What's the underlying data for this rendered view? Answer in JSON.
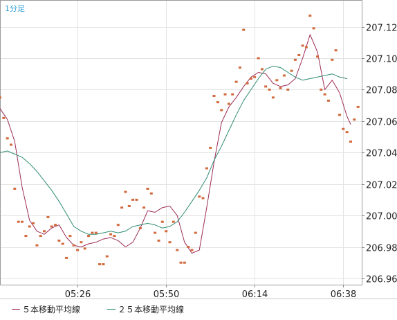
{
  "chart_data": {
    "type": "line",
    "timeframe_label": "1分足",
    "x_tick_labels": [
      "05:26",
      "05:50",
      "06:14",
      "06:38"
    ],
    "y_tick_labels": [
      "206.96",
      "206.98",
      "207.00",
      "207.02",
      "207.04",
      "207.06",
      "207.08",
      "207.10",
      "207.12"
    ],
    "y_ticks": [
      206.96,
      206.98,
      207.0,
      207.02,
      207.04,
      207.06,
      207.08,
      207.1,
      207.12
    ],
    "ylim": [
      206.956,
      207.137
    ],
    "x_start": "05:05",
    "x_end": "06:38",
    "grid": true,
    "legend_position": "bottom",
    "series": [
      {
        "name": "５本移動平均線",
        "color": "#9c2a55",
        "points": [
          [
            0,
            207.068
          ],
          [
            2,
            207.061
          ],
          [
            4,
            207.047
          ],
          [
            6,
            207.018
          ],
          [
            8,
            206.997
          ],
          [
            10,
            206.99
          ],
          [
            12,
            206.988
          ],
          [
            14,
            206.992
          ],
          [
            16,
            206.994
          ],
          [
            18,
            206.986
          ],
          [
            20,
            206.981
          ],
          [
            22,
            206.98
          ],
          [
            24,
            206.982
          ],
          [
            26,
            206.983
          ],
          [
            28,
            206.985
          ],
          [
            30,
            206.986
          ],
          [
            32,
            206.984
          ],
          [
            34,
            206.98
          ],
          [
            36,
            206.983
          ],
          [
            38,
            206.992
          ],
          [
            40,
            207.003
          ],
          [
            42,
            207.002
          ],
          [
            44,
            207.005
          ],
          [
            46,
            207.006
          ],
          [
            48,
            207.0
          ],
          [
            50,
            206.983
          ],
          [
            52,
            206.976
          ],
          [
            54,
            206.978
          ],
          [
            56,
            207.005
          ],
          [
            58,
            207.034
          ],
          [
            60,
            207.059
          ],
          [
            62,
            207.069
          ],
          [
            64,
            207.075
          ],
          [
            66,
            207.082
          ],
          [
            68,
            207.088
          ],
          [
            70,
            207.091
          ],
          [
            72,
            207.09
          ],
          [
            74,
            207.084
          ],
          [
            76,
            207.082
          ],
          [
            78,
            207.083
          ],
          [
            80,
            207.087
          ],
          [
            82,
            207.1
          ],
          [
            84,
            207.115
          ],
          [
            86,
            207.104
          ],
          [
            88,
            207.08
          ],
          [
            90,
            207.086
          ],
          [
            92,
            207.078
          ],
          [
            94,
            207.063
          ],
          [
            95,
            207.058
          ]
        ]
      },
      {
        "name": "２５本移動平均線",
        "color": "#2e8b73",
        "points": [
          [
            0,
            207.04
          ],
          [
            2,
            207.041
          ],
          [
            4,
            207.039
          ],
          [
            6,
            207.037
          ],
          [
            8,
            207.033
          ],
          [
            10,
            207.028
          ],
          [
            12,
            207.022
          ],
          [
            14,
            207.016
          ],
          [
            16,
            207.009
          ],
          [
            18,
            207.001
          ],
          [
            20,
            206.993
          ],
          [
            22,
            206.99
          ],
          [
            24,
            206.988
          ],
          [
            26,
            206.988
          ],
          [
            28,
            206.989
          ],
          [
            30,
            206.99
          ],
          [
            32,
            206.989
          ],
          [
            34,
            206.99
          ],
          [
            36,
            206.993
          ],
          [
            38,
            206.994
          ],
          [
            40,
            206.995
          ],
          [
            42,
            206.994
          ],
          [
            44,
            206.992
          ],
          [
            46,
            206.993
          ],
          [
            48,
            206.996
          ],
          [
            50,
            207.002
          ],
          [
            52,
            207.009
          ],
          [
            54,
            207.016
          ],
          [
            56,
            207.024
          ],
          [
            58,
            207.035
          ],
          [
            60,
            207.044
          ],
          [
            62,
            207.054
          ],
          [
            64,
            207.064
          ],
          [
            66,
            207.073
          ],
          [
            68,
            207.08
          ],
          [
            70,
            207.087
          ],
          [
            72,
            207.093
          ],
          [
            74,
            207.095
          ],
          [
            76,
            207.094
          ],
          [
            78,
            207.091
          ],
          [
            80,
            207.088
          ],
          [
            82,
            207.086
          ],
          [
            84,
            207.087
          ],
          [
            86,
            207.088
          ],
          [
            88,
            207.089
          ],
          [
            90,
            207.09
          ],
          [
            92,
            207.088
          ],
          [
            94,
            207.087
          ]
        ]
      },
      {
        "name": "",
        "color": "#d2693c",
        "type": "scatter",
        "points": [
          [
            0,
            207.075
          ],
          [
            1,
            207.062
          ],
          [
            2,
            207.049
          ],
          [
            3,
            207.045
          ],
          [
            4,
            207.017
          ],
          [
            5,
            206.996
          ],
          [
            6,
            206.996
          ],
          [
            7,
            206.987
          ],
          [
            8,
            206.993
          ],
          [
            9,
            206.995
          ],
          [
            10,
            206.981
          ],
          [
            11,
            206.987
          ],
          [
            12,
            206.99
          ],
          [
            13,
            206.999
          ],
          [
            14,
            206.993
          ],
          [
            15,
            206.994
          ],
          [
            16,
            206.984
          ],
          [
            17,
            206.982
          ],
          [
            18,
            206.973
          ],
          [
            19,
            206.987
          ],
          [
            20,
            206.981
          ],
          [
            21,
            206.978
          ],
          [
            22,
            206.983
          ],
          [
            23,
            206.979
          ],
          [
            24,
            206.987
          ],
          [
            25,
            206.989
          ],
          [
            26,
            206.989
          ],
          [
            27,
            206.969
          ],
          [
            28,
            206.969
          ],
          [
            29,
            206.974
          ],
          [
            30,
            206.988
          ],
          [
            31,
            206.987
          ],
          [
            32,
            206.994
          ],
          [
            33,
            207.005
          ],
          [
            34,
            207.015
          ],
          [
            35,
            207.006
          ],
          [
            36,
            207.01
          ],
          [
            37,
            207.01
          ],
          [
            38,
            206.992
          ],
          [
            39,
            207.005
          ],
          [
            40,
            207.017
          ],
          [
            41,
            207.014
          ],
          [
            42,
            206.989
          ],
          [
            43,
            206.984
          ],
          [
            44,
            206.996
          ],
          [
            45,
            206.99
          ],
          [
            46,
            206.983
          ],
          [
            47,
            206.996
          ],
          [
            48,
            206.978
          ],
          [
            49,
            206.97
          ],
          [
            50,
            206.97
          ],
          [
            51,
            206.98
          ],
          [
            52,
            206.978
          ],
          [
            53,
            206.989
          ],
          [
            54,
            207.012
          ],
          [
            55,
            207.011
          ],
          [
            56,
            207.03
          ],
          [
            57,
            207.043
          ],
          [
            58,
            207.076
          ],
          [
            59,
            207.072
          ],
          [
            60,
            207.067
          ],
          [
            61,
            207.077
          ],
          [
            62,
            207.071
          ],
          [
            63,
            207.077
          ],
          [
            64,
            207.085
          ],
          [
            65,
            207.094
          ],
          [
            66,
            207.118
          ],
          [
            67,
            207.084
          ],
          [
            68,
            207.087
          ],
          [
            69,
            207.088
          ],
          [
            70,
            207.1
          ],
          [
            71,
            207.093
          ],
          [
            72,
            207.082
          ],
          [
            73,
            207.08
          ],
          [
            74,
            207.075
          ],
          [
            75,
            207.086
          ],
          [
            76,
            207.081
          ],
          [
            77,
            207.089
          ],
          [
            78,
            207.08
          ],
          [
            79,
            207.092
          ],
          [
            80,
            207.099
          ],
          [
            81,
            207.102
          ],
          [
            82,
            207.108
          ],
          [
            83,
            207.107
          ],
          [
            84,
            207.127
          ],
          [
            85,
            207.119
          ],
          [
            86,
            207.101
          ],
          [
            87,
            207.08
          ],
          [
            88,
            207.077
          ],
          [
            89,
            207.073
          ],
          [
            90,
            207.099
          ],
          [
            91,
            207.105
          ],
          [
            92,
            207.064
          ],
          [
            93,
            207.055
          ],
          [
            94,
            207.053
          ],
          [
            95,
            207.047
          ],
          [
            96,
            207.061
          ],
          [
            97,
            207.069
          ]
        ]
      }
    ]
  }
}
